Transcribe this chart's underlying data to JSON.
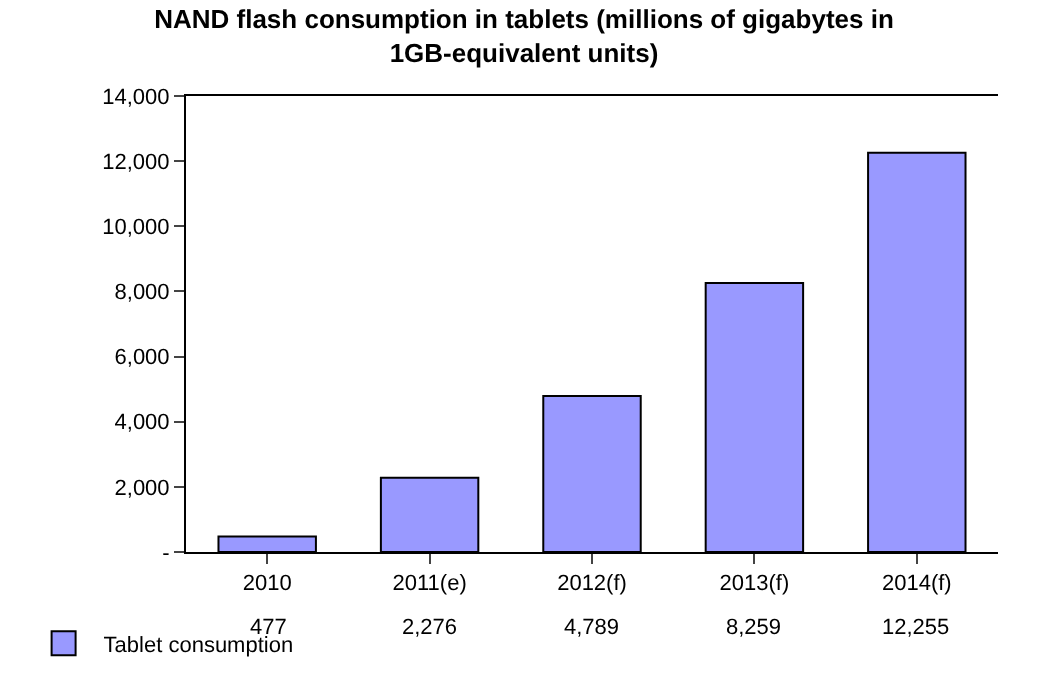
{
  "chart_data": {
    "type": "bar",
    "title": "NAND flash consumption in tablets (millions of gigabytes in 1GB-equivalent units)",
    "categories": [
      "2010",
      "2011(e)",
      "2012(f)",
      "2013(f)",
      "2014(f)"
    ],
    "series": [
      {
        "name": "Tablet consumption",
        "color": "#9999ff",
        "values": [
          477,
          2276,
          4789,
          8259,
          12255
        ]
      }
    ],
    "value_labels": [
      "477",
      "2,276",
      "4,789",
      "8,259",
      "12,255"
    ],
    "ylim": [
      0,
      14000
    ],
    "yticks": [
      {
        "value": 0,
        "label": "-"
      },
      {
        "value": 2000,
        "label": "2,000"
      },
      {
        "value": 4000,
        "label": "4,000"
      },
      {
        "value": 6000,
        "label": "6,000"
      },
      {
        "value": 8000,
        "label": "8,000"
      },
      {
        "value": 10000,
        "label": "10,000"
      },
      {
        "value": 12000,
        "label": "12,000"
      },
      {
        "value": 14000,
        "label": "14,000"
      }
    ],
    "legend": "bottom left",
    "grid": false
  }
}
